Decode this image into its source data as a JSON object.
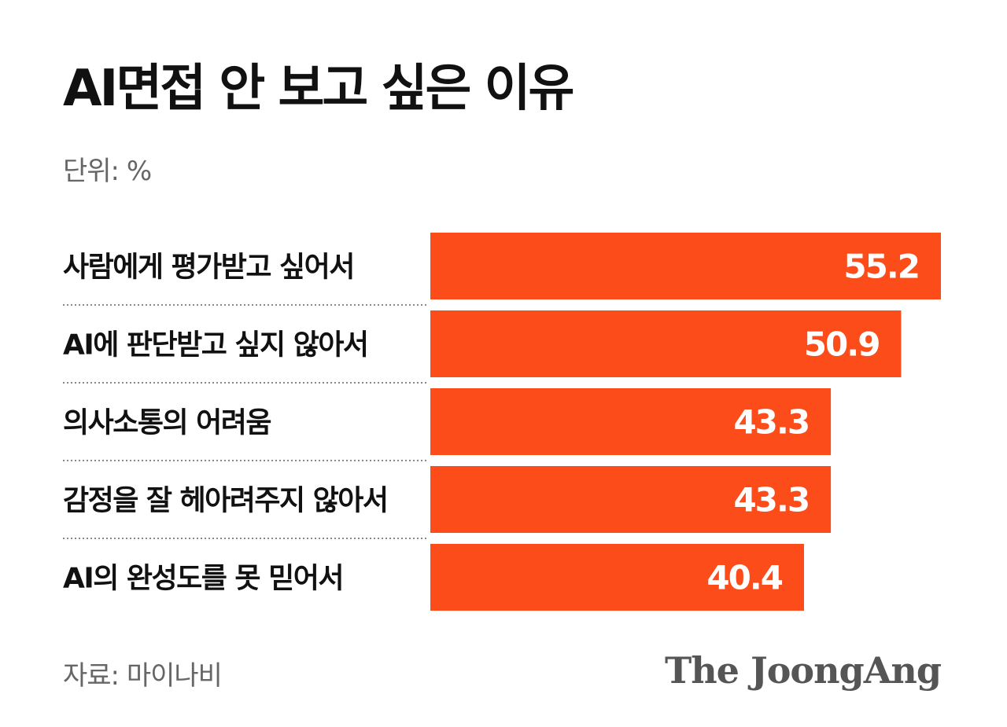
{
  "header": {
    "title": "AI면접 안 보고 싶은 이유",
    "unit": "단위: %"
  },
  "footer": {
    "source": "자료: 마이나비",
    "logo": "The JoongAng"
  },
  "colors": {
    "bar": "#fc4c1a",
    "value_label": "#ffffff",
    "divider": "#888888"
  },
  "chart_data": {
    "type": "bar",
    "orientation": "horizontal",
    "title": "AI면접 안 보고 싶은 이유",
    "unit": "%",
    "categories": [
      "사람에게 평가받고 싶어서",
      "AI에 판단받고 싶지 않아서",
      "의사소통의 어려움",
      "감정을 잘 헤아려주지 않아서",
      "AI의 완성도를 못 믿어서"
    ],
    "values": [
      55.2,
      50.9,
      43.3,
      43.3,
      40.4
    ],
    "data_labels": [
      "55.2",
      "50.9",
      "43.3",
      "43.3",
      "40.4"
    ],
    "xlim": [
      0,
      55.2
    ],
    "grid": false,
    "legend": "none"
  }
}
